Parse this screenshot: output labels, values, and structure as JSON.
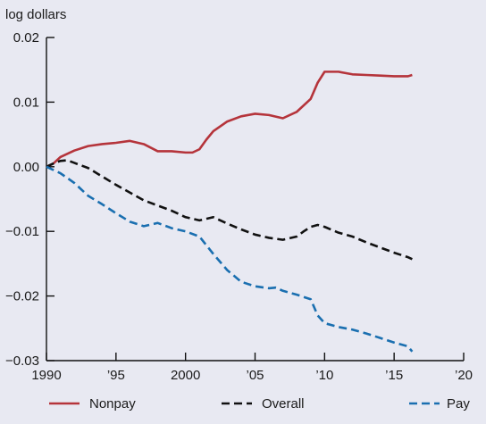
{
  "chart_data": {
    "type": "line",
    "ylabel": "log dollars",
    "xlim": [
      1990,
      2020
    ],
    "ylim": [
      -0.03,
      0.02
    ],
    "x_ticks": [
      1990,
      1995,
      2000,
      2005,
      2010,
      2015,
      2020
    ],
    "x_tick_labels": [
      "1990",
      "’95",
      "2000",
      "’05",
      "’10",
      "’15",
      "’20"
    ],
    "y_ticks": [
      0.02,
      0.01,
      0.0,
      -0.01,
      -0.02,
      -0.03
    ],
    "y_tick_labels": [
      "0.02",
      "0.01",
      "0.00",
      "−0.01",
      "−0.02",
      "−0.03"
    ],
    "grid": false,
    "legend_position": "bottom",
    "series": [
      {
        "name": "Nonpay",
        "color": "#b5343b",
        "dash": "solid",
        "x": [
          1990,
          1990.5,
          1991,
          1991.5,
          1992,
          1993,
          1994,
          1995,
          1996,
          1997,
          1998,
          1999,
          2000,
          2000.5,
          2001,
          2001.5,
          2002,
          2003,
          2004,
          2005,
          2006,
          2007,
          2008,
          2009,
          2009.5,
          2010,
          2011,
          2012,
          2013,
          2014,
          2015,
          2016,
          2016.3
        ],
        "y": [
          0.0,
          0.0005,
          0.0015,
          0.002,
          0.0025,
          0.0032,
          0.0035,
          0.0037,
          0.004,
          0.0035,
          0.0024,
          0.0024,
          0.0022,
          0.0022,
          0.0027,
          0.0042,
          0.0055,
          0.007,
          0.0078,
          0.0082,
          0.008,
          0.0075,
          0.0085,
          0.0105,
          0.013,
          0.0147,
          0.0147,
          0.0143,
          0.0142,
          0.0141,
          0.014,
          0.014,
          0.0142
        ]
      },
      {
        "name": "Overall",
        "color": "#111111",
        "dash": "dashed",
        "x": [
          1990,
          1990.5,
          1991,
          1991.5,
          1992,
          1993,
          1994,
          1995,
          1996,
          1997,
          1998,
          1999,
          2000,
          2001,
          2002,
          2003,
          2004,
          2005,
          2006,
          2007,
          2008,
          2008.5,
          2009,
          2009.5,
          2010,
          2011,
          2012,
          2013,
          2014,
          2015,
          2016,
          2016.3
        ],
        "y": [
          0.0,
          0.0005,
          0.0009,
          0.001,
          0.0006,
          -0.0002,
          -0.0015,
          -0.0028,
          -0.004,
          -0.0052,
          -0.006,
          -0.0068,
          -0.0078,
          -0.0083,
          -0.0078,
          -0.0088,
          -0.0097,
          -0.0105,
          -0.011,
          -0.0113,
          -0.0108,
          -0.01,
          -0.0093,
          -0.009,
          -0.0093,
          -0.0102,
          -0.0108,
          -0.0117,
          -0.0125,
          -0.0133,
          -0.014,
          -0.0143
        ]
      },
      {
        "name": "Pay",
        "color": "#1a6fb0",
        "dash": "dashed",
        "x": [
          1990,
          1991,
          1992,
          1993,
          1994,
          1995,
          1996,
          1997,
          1998,
          1999,
          2000,
          2001,
          2002,
          2003,
          2004,
          2005,
          2006,
          2006.5,
          2007,
          2008,
          2009,
          2009.5,
          2010,
          2011,
          2012,
          2013,
          2014,
          2015,
          2016,
          2016.3
        ],
        "y": [
          0.0,
          -0.001,
          -0.0025,
          -0.0045,
          -0.0058,
          -0.0072,
          -0.0085,
          -0.0092,
          -0.0087,
          -0.0095,
          -0.01,
          -0.0108,
          -0.0135,
          -0.016,
          -0.0178,
          -0.0185,
          -0.0188,
          -0.0187,
          -0.0192,
          -0.0198,
          -0.0205,
          -0.023,
          -0.0242,
          -0.0248,
          -0.0252,
          -0.0258,
          -0.0265,
          -0.0272,
          -0.0278,
          -0.0286
        ]
      }
    ]
  }
}
